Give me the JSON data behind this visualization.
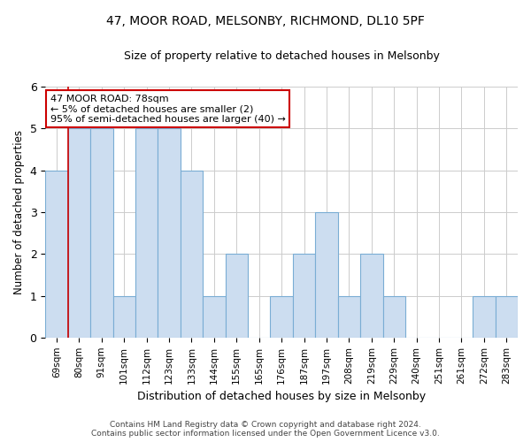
{
  "title": "47, MOOR ROAD, MELSONBY, RICHMOND, DL10 5PF",
  "subtitle": "Size of property relative to detached houses in Melsonby",
  "xlabel": "Distribution of detached houses by size in Melsonby",
  "ylabel": "Number of detached properties",
  "categories": [
    "69sqm",
    "80sqm",
    "91sqm",
    "101sqm",
    "112sqm",
    "123sqm",
    "133sqm",
    "144sqm",
    "155sqm",
    "165sqm",
    "176sqm",
    "187sqm",
    "197sqm",
    "208sqm",
    "219sqm",
    "229sqm",
    "240sqm",
    "251sqm",
    "261sqm",
    "272sqm",
    "283sqm"
  ],
  "values": [
    4,
    5,
    5,
    1,
    5,
    5,
    4,
    1,
    2,
    0,
    1,
    2,
    3,
    1,
    2,
    1,
    0,
    0,
    0,
    1,
    1
  ],
  "bar_color": "#ccddf0",
  "bar_edge_color": "#7aadd4",
  "highlight_color": "#cc0000",
  "ylim": [
    0,
    6
  ],
  "yticks": [
    0,
    1,
    2,
    3,
    4,
    5,
    6
  ],
  "annotation_line1": "47 MOOR ROAD: 78sqm",
  "annotation_line2": "← 5% of detached houses are smaller (2)",
  "annotation_line3": "95% of semi-detached houses are larger (40) →",
  "annotation_box_color": "#ffffff",
  "annotation_border_color": "#cc0000",
  "footer_line1": "Contains HM Land Registry data © Crown copyright and database right 2024.",
  "footer_line2": "Contains public sector information licensed under the Open Government Licence v3.0.",
  "background_color": "#ffffff",
  "grid_color": "#cccccc",
  "title_fontsize": 10,
  "subtitle_fontsize": 9
}
